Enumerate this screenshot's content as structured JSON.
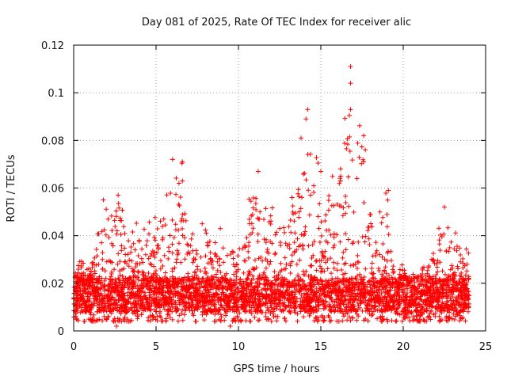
{
  "chart_data": {
    "type": "scatter",
    "title": "Day 081 of 2025, Rate Of TEC Index for receiver alic",
    "xlabel": "GPS time / hours",
    "ylabel": "ROTI / TECUs",
    "xlim": [
      0,
      25
    ],
    "ylim": [
      0,
      0.12
    ],
    "xticks": [
      0,
      5,
      10,
      15,
      20,
      25
    ],
    "xtick_labels": [
      "0",
      "5",
      "10",
      "15",
      "20",
      "25"
    ],
    "yticks": [
      0,
      0.02,
      0.04,
      0.06,
      0.08,
      0.1,
      0.12
    ],
    "ytick_labels": [
      "0",
      "0.02",
      "0.04",
      "0.06",
      "0.08",
      "0.1",
      "0.12"
    ],
    "grid": true,
    "marker": "+",
    "color": "#ff0000",
    "x_range_hours": [
      0,
      24
    ],
    "baseline_band": [
      0.008,
      0.022
    ],
    "envelope": [
      {
        "x": 0.0,
        "max": 0.031
      },
      {
        "x": 1.0,
        "max": 0.028
      },
      {
        "x": 1.8,
        "max": 0.055
      },
      {
        "x": 2.7,
        "max": 0.057
      },
      {
        "x": 3.5,
        "max": 0.044
      },
      {
        "x": 4.2,
        "max": 0.048
      },
      {
        "x": 5.2,
        "max": 0.05
      },
      {
        "x": 6.0,
        "max": 0.072
      },
      {
        "x": 6.6,
        "max": 0.071
      },
      {
        "x": 7.0,
        "max": 0.046
      },
      {
        "x": 8.0,
        "max": 0.044
      },
      {
        "x": 9.0,
        "max": 0.038
      },
      {
        "x": 10.0,
        "max": 0.035
      },
      {
        "x": 11.0,
        "max": 0.067
      },
      {
        "x": 12.0,
        "max": 0.058
      },
      {
        "x": 13.0,
        "max": 0.055
      },
      {
        "x": 13.8,
        "max": 0.082
      },
      {
        "x": 14.2,
        "max": 0.093
      },
      {
        "x": 15.0,
        "max": 0.068
      },
      {
        "x": 16.0,
        "max": 0.068
      },
      {
        "x": 16.8,
        "max": 0.111
      },
      {
        "x": 17.5,
        "max": 0.083
      },
      {
        "x": 18.2,
        "max": 0.05
      },
      {
        "x": 19.0,
        "max": 0.059
      },
      {
        "x": 19.5,
        "max": 0.03
      },
      {
        "x": 20.5,
        "max": 0.025
      },
      {
        "x": 21.5,
        "max": 0.03
      },
      {
        "x": 22.5,
        "max": 0.052
      },
      {
        "x": 23.0,
        "max": 0.045
      },
      {
        "x": 24.0,
        "max": 0.034
      }
    ],
    "notable_points": [
      {
        "x": 16.8,
        "y": 0.111
      },
      {
        "x": 16.8,
        "y": 0.104
      },
      {
        "x": 16.8,
        "y": 0.093
      },
      {
        "x": 14.2,
        "y": 0.093
      },
      {
        "x": 14.1,
        "y": 0.089
      },
      {
        "x": 13.8,
        "y": 0.081
      },
      {
        "x": 17.6,
        "y": 0.082
      },
      {
        "x": 17.7,
        "y": 0.076
      },
      {
        "x": 17.6,
        "y": 0.071
      },
      {
        "x": 6.0,
        "y": 0.072
      },
      {
        "x": 6.6,
        "y": 0.071
      },
      {
        "x": 6.6,
        "y": 0.063
      },
      {
        "x": 11.2,
        "y": 0.067
      },
      {
        "x": 16.2,
        "y": 0.068
      },
      {
        "x": 15.0,
        "y": 0.067
      },
      {
        "x": 1.8,
        "y": 0.055
      },
      {
        "x": 2.7,
        "y": 0.057
      },
      {
        "x": 19.1,
        "y": 0.059
      },
      {
        "x": 22.5,
        "y": 0.052
      },
      {
        "x": 7.8,
        "y": 0.045
      },
      {
        "x": 8.9,
        "y": 0.043
      },
      {
        "x": 2.6,
        "y": 0.002
      },
      {
        "x": 9.5,
        "y": 0.002
      },
      {
        "x": 14.8,
        "y": 0.004
      }
    ]
  }
}
